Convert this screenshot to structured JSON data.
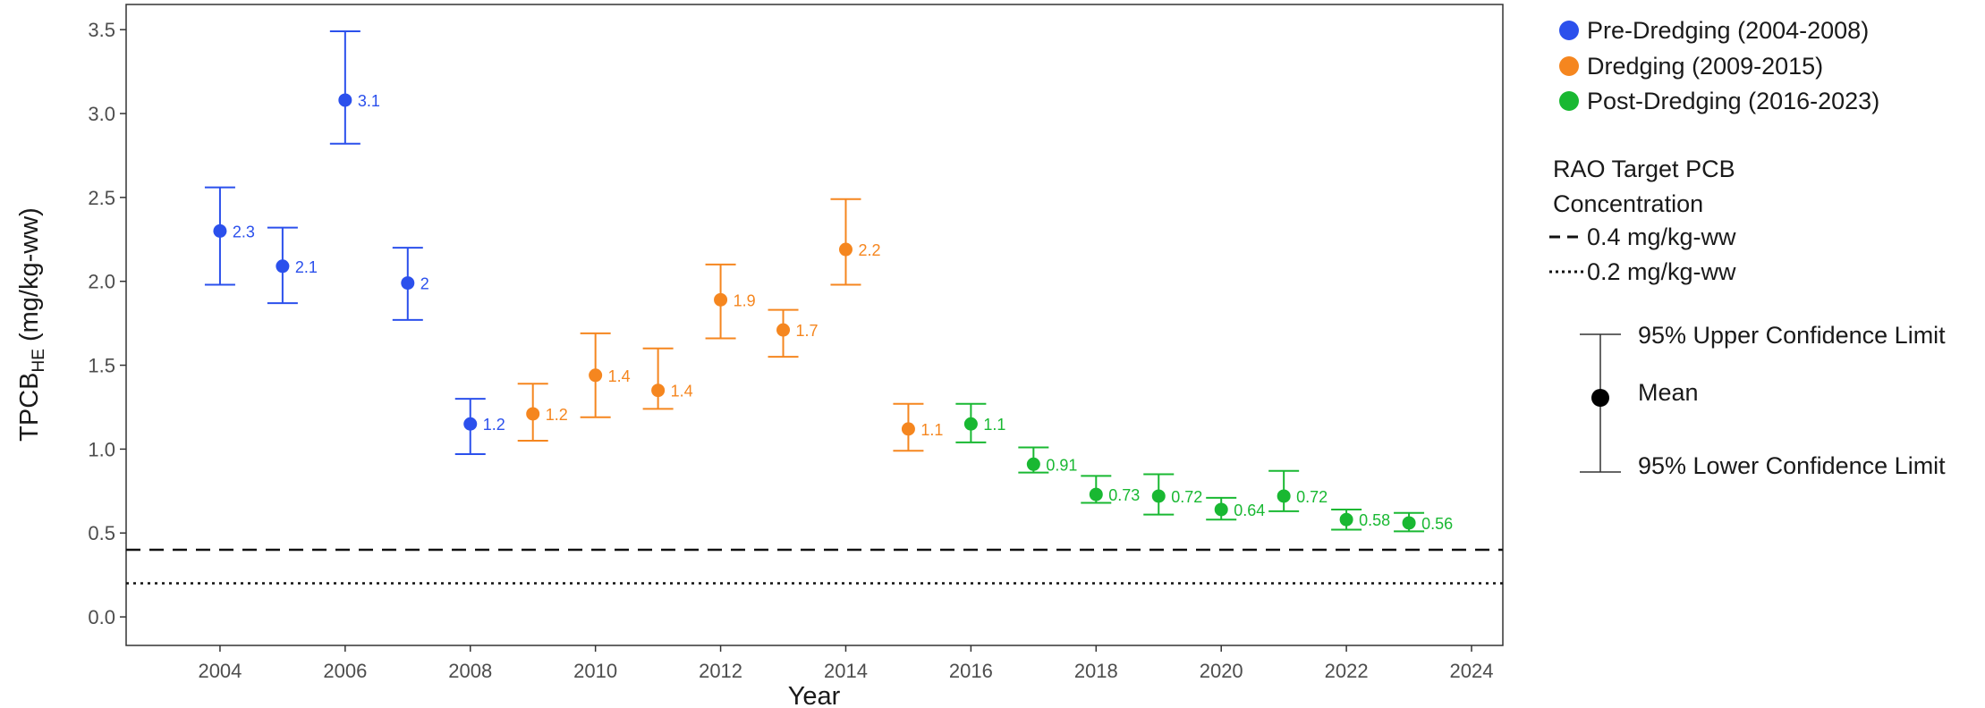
{
  "chart_data": {
    "type": "scatter",
    "title": "",
    "xlabel": "Year",
    "ylabel_main": "TPCB",
    "ylabel_sub": "HE",
    "ylabel_unit": " (mg/kg-ww)",
    "xlim": [
      2002.5,
      2024.5
    ],
    "ylim": [
      -0.17,
      3.65
    ],
    "xticks": [
      2004,
      2006,
      2008,
      2010,
      2012,
      2014,
      2016,
      2018,
      2020,
      2022,
      2024
    ],
    "yticks": [
      0.0,
      0.5,
      1.0,
      1.5,
      2.0,
      2.5,
      3.0,
      3.5
    ],
    "ytick_labels": [
      "0.0",
      "0.5",
      "1.0",
      "1.5",
      "2.0",
      "2.5",
      "3.0",
      "3.5"
    ],
    "grid": false,
    "legend_position": "right",
    "series": [
      {
        "name": "Pre-Dredging (2004-2008)",
        "color": "#2b50ec",
        "points": [
          {
            "x": 2004,
            "y": 2.3,
            "lower": 1.98,
            "upper": 2.56,
            "label": "2.3"
          },
          {
            "x": 2005,
            "y": 2.09,
            "lower": 1.87,
            "upper": 2.32,
            "label": "2.1"
          },
          {
            "x": 2006,
            "y": 3.08,
            "lower": 2.82,
            "upper": 3.49,
            "label": "3.1"
          },
          {
            "x": 2007,
            "y": 1.99,
            "lower": 1.77,
            "upper": 2.2,
            "label": "2"
          },
          {
            "x": 2008,
            "y": 1.15,
            "lower": 0.97,
            "upper": 1.3,
            "label": "1.2"
          }
        ]
      },
      {
        "name": "Dredging (2009-2015)",
        "color": "#f5861f",
        "points": [
          {
            "x": 2009,
            "y": 1.21,
            "lower": 1.05,
            "upper": 1.39,
            "label": "1.2"
          },
          {
            "x": 2010,
            "y": 1.44,
            "lower": 1.19,
            "upper": 1.69,
            "label": "1.4"
          },
          {
            "x": 2011,
            "y": 1.35,
            "lower": 1.24,
            "upper": 1.6,
            "label": "1.4"
          },
          {
            "x": 2012,
            "y": 1.89,
            "lower": 1.66,
            "upper": 2.1,
            "label": "1.9"
          },
          {
            "x": 2013,
            "y": 1.71,
            "lower": 1.55,
            "upper": 1.83,
            "label": "1.7"
          },
          {
            "x": 2014,
            "y": 2.19,
            "lower": 1.98,
            "upper": 2.49,
            "label": "2.2"
          },
          {
            "x": 2015,
            "y": 1.12,
            "lower": 0.99,
            "upper": 1.27,
            "label": "1.1"
          }
        ]
      },
      {
        "name": "Post-Dredging (2016-2023)",
        "color": "#19b832",
        "points": [
          {
            "x": 2016,
            "y": 1.15,
            "lower": 1.04,
            "upper": 1.27,
            "label": "1.1"
          },
          {
            "x": 2017,
            "y": 0.91,
            "lower": 0.86,
            "upper": 1.01,
            "label": "0.91"
          },
          {
            "x": 2018,
            "y": 0.73,
            "lower": 0.68,
            "upper": 0.84,
            "label": "0.73"
          },
          {
            "x": 2019,
            "y": 0.72,
            "lower": 0.61,
            "upper": 0.85,
            "label": "0.72"
          },
          {
            "x": 2020,
            "y": 0.64,
            "lower": 0.58,
            "upper": 0.71,
            "label": "0.64"
          },
          {
            "x": 2021,
            "y": 0.72,
            "lower": 0.63,
            "upper": 0.87,
            "label": "0.72"
          },
          {
            "x": 2022,
            "y": 0.58,
            "lower": 0.52,
            "upper": 0.64,
            "label": "0.58"
          },
          {
            "x": 2023,
            "y": 0.56,
            "lower": 0.51,
            "upper": 0.62,
            "label": "0.56"
          }
        ]
      }
    ],
    "reference_lines": [
      {
        "y": 0.4,
        "style": "dashed",
        "label": "0.4 mg/kg-ww"
      },
      {
        "y": 0.2,
        "style": "dotted",
        "label": "0.2 mg/kg-ww"
      }
    ],
    "reference_legend_title": [
      "RAO Target PCB",
      "Concentration"
    ],
    "errorbar_legend": {
      "upper": "95% Upper Confidence Limit",
      "mean": "Mean",
      "lower": "95% Lower Confidence Limit"
    }
  }
}
